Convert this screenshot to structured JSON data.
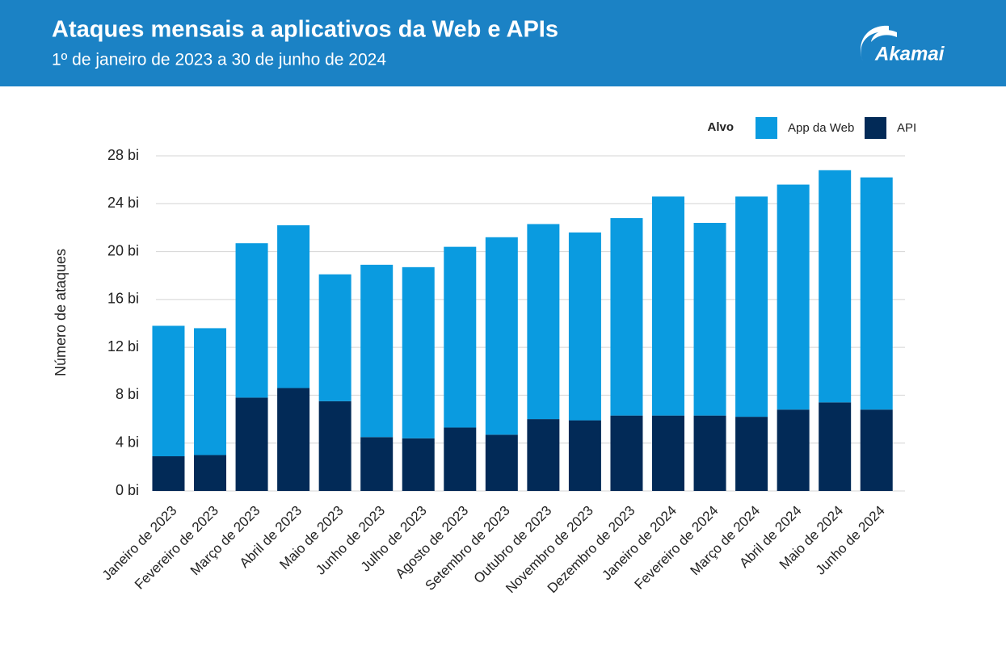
{
  "brand": "Akamai",
  "chart_data": {
    "type": "stacked-bar",
    "title": "Ataques mensais a aplicativos da Web e APIs",
    "subtitle": "1º de janeiro de 2023 a 30 de junho de 2024",
    "y_label": "Número de ataques",
    "legend_title": "Alvo",
    "categories": [
      "Janeiro de 2023",
      "Fevereiro de 2023",
      "Março de 2023",
      "Abril de 2023",
      "Maio de 2023",
      "Junho de 2023",
      "Julho de 2023",
      "Agosto de 2023",
      "Setembro de 2023",
      "Outubro de 2023",
      "Novembro de 2023",
      "Dezembro de 2023",
      "Janeiro de 2024",
      "Fevereiro de 2024",
      "Março de 2024",
      "Abril de 2024",
      "Maio de 2024",
      "Junho de 2024"
    ],
    "series": [
      {
        "name": "App da Web",
        "color": "#0a9be0",
        "values": [
          10.9,
          10.6,
          12.9,
          13.6,
          10.6,
          14.4,
          14.3,
          15.1,
          16.5,
          16.3,
          15.7,
          16.5,
          18.3,
          16.1,
          18.4,
          18.8,
          19.4,
          19.4
        ]
      },
      {
        "name": "API",
        "color": "#022a57",
        "values": [
          2.9,
          3.0,
          7.8,
          8.6,
          7.5,
          4.5,
          4.4,
          5.3,
          4.7,
          6.0,
          5.9,
          6.3,
          6.3,
          6.3,
          6.2,
          6.8,
          7.4,
          6.8
        ]
      }
    ],
    "ylim": [
      0,
      28
    ],
    "yticks": [
      {
        "value": 0,
        "label": "0 bi"
      },
      {
        "value": 4,
        "label": "4 bi"
      },
      {
        "value": 8,
        "label": "8 bi"
      },
      {
        "value": 12,
        "label": "12 bi"
      },
      {
        "value": 16,
        "label": "16 bi"
      },
      {
        "value": 20,
        "label": "20 bi"
      },
      {
        "value": 24,
        "label": "24 bi"
      },
      {
        "value": 28,
        "label": "28 bi"
      }
    ],
    "grid": true
  }
}
